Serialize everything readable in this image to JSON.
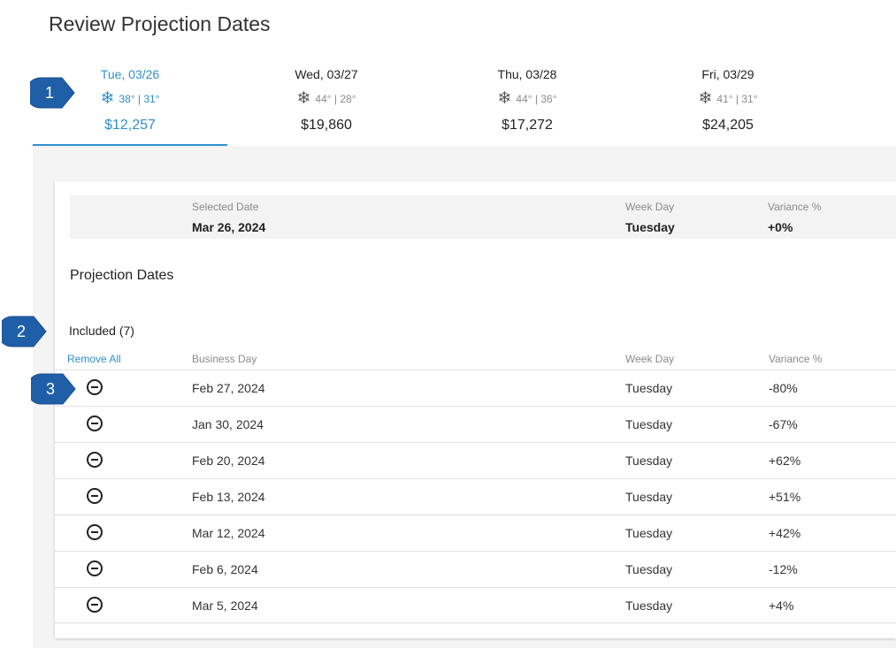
{
  "page": {
    "title": "Review Projection Dates"
  },
  "tabs": [
    {
      "date": "Tue, 03/26",
      "weather_icon": "snowflake-icon",
      "temps": "38° | 31°",
      "amount": "$12,257",
      "active": true
    },
    {
      "date": "Wed, 03/27",
      "weather_icon": "snowflake-icon",
      "temps": "44° | 28°",
      "amount": "$19,860",
      "active": false
    },
    {
      "date": "Thu, 03/28",
      "weather_icon": "snowflake-icon",
      "temps": "44° | 36°",
      "amount": "$17,272",
      "active": false
    },
    {
      "date": "Fri, 03/29",
      "weather_icon": "snowflake-icon",
      "temps": "41° | 31°",
      "amount": "$24,205",
      "active": false
    }
  ],
  "summary": {
    "selected_date_label": "Selected Date",
    "selected_date": "Mar 26, 2024",
    "week_day_label": "Week Day",
    "week_day": "Tuesday",
    "variance_label": "Variance %",
    "variance": "+0%"
  },
  "projection": {
    "title": "Projection Dates",
    "included_label": "Included (7)",
    "remove_all": "Remove All",
    "columns": {
      "business_day": "Business Day",
      "week_day": "Week Day",
      "variance": "Variance %"
    },
    "rows": [
      {
        "business_day": "Feb 27, 2024",
        "week_day": "Tuesday",
        "variance": "-80%"
      },
      {
        "business_day": "Jan 30, 2024",
        "week_day": "Tuesday",
        "variance": "-67%"
      },
      {
        "business_day": "Feb 20, 2024",
        "week_day": "Tuesday",
        "variance": "+62%"
      },
      {
        "business_day": "Feb 13, 2024",
        "week_day": "Tuesday",
        "variance": "+51%"
      },
      {
        "business_day": "Mar 12, 2024",
        "week_day": "Tuesday",
        "variance": "+42%"
      },
      {
        "business_day": "Feb 6, 2024",
        "week_day": "Tuesday",
        "variance": "-12%"
      },
      {
        "business_day": "Mar 5, 2024",
        "week_day": "Tuesday",
        "variance": "+4%"
      }
    ]
  },
  "callouts": [
    "1",
    "2",
    "3"
  ],
  "colors": {
    "accent": "#2f8fcc",
    "callout": "#1f5fa8"
  }
}
